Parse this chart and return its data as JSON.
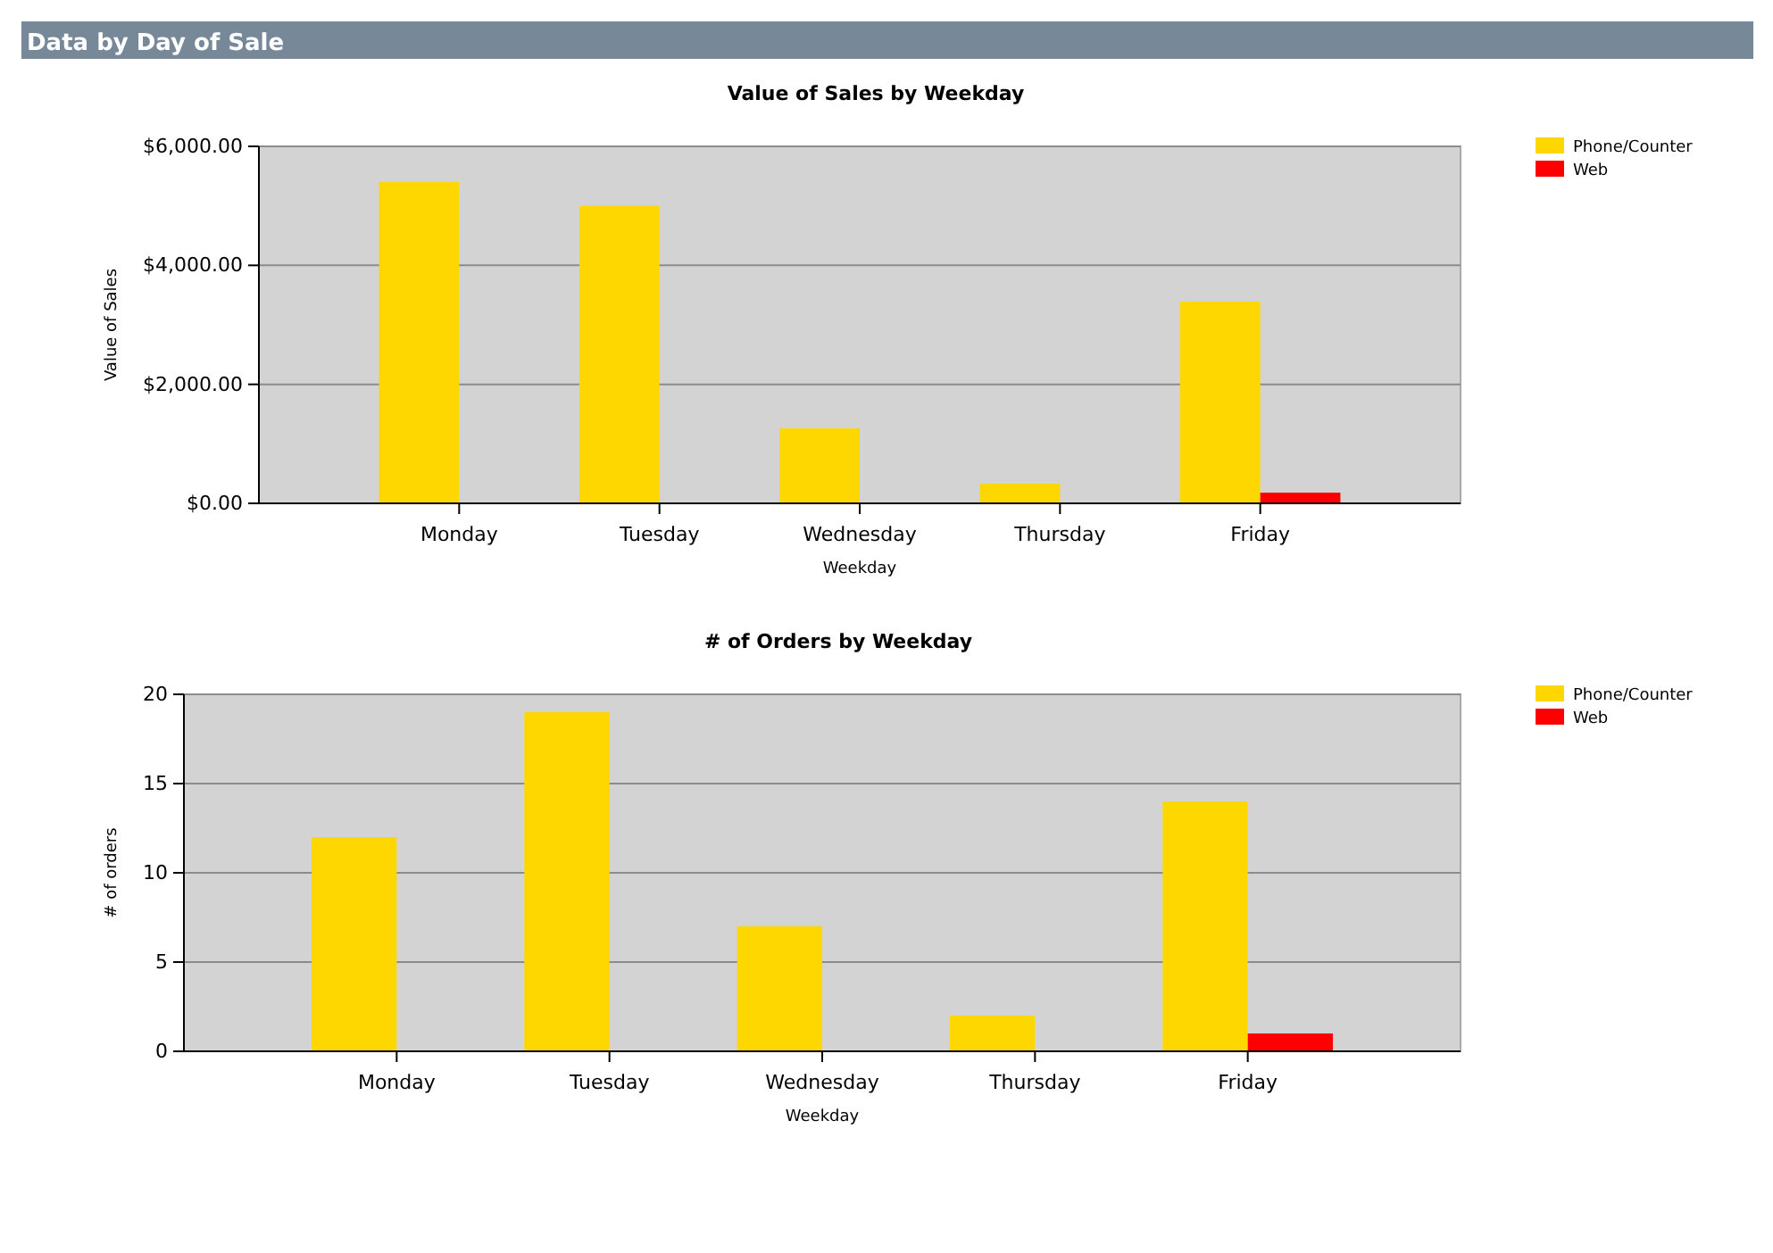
{
  "chart_data": [
    {
      "type": "bar",
      "title": "Value of Sales by Weekday",
      "xlabel": "Weekday",
      "ylabel": "Value of Sales",
      "annotations": [
        "Data by Day of Sale"
      ],
      "categories": [
        "Monday",
        "Tuesday",
        "Wednesday",
        "Thursday",
        "Friday"
      ],
      "series": [
        {
          "name": "Phone/Counter",
          "color": "#ffd700",
          "values": [
            5400,
            5000,
            1260,
            330,
            3390
          ]
        },
        {
          "name": "Web",
          "color": "#ff0000",
          "values": [
            0,
            0,
            0,
            0,
            180
          ]
        }
      ],
      "ylim": [
        0,
        6000
      ],
      "yticks": [
        {
          "value": 0,
          "label": "$0.00"
        },
        {
          "value": 2000,
          "label": "$2,000.00"
        },
        {
          "value": 4000,
          "label": "$4,000.00"
        },
        {
          "value": 6000,
          "label": "$6,000.00"
        }
      ],
      "grid": "y",
      "legend": "top right"
    },
    {
      "type": "bar",
      "title": "# of Orders by Weekday",
      "xlabel": "Weekday",
      "ylabel": "# of orders",
      "categories": [
        "Monday",
        "Tuesday",
        "Wednesday",
        "Thursday",
        "Friday"
      ],
      "series": [
        {
          "name": "Phone/Counter",
          "color": "#ffd700",
          "values": [
            12,
            19,
            7,
            2,
            14
          ]
        },
        {
          "name": "Web",
          "color": "#ff0000",
          "values": [
            0,
            0,
            0,
            0,
            1
          ]
        }
      ],
      "ylim": [
        0,
        20
      ],
      "yticks": [
        0,
        5,
        10,
        15,
        20
      ],
      "grid": "y",
      "legend": "top right"
    }
  ]
}
